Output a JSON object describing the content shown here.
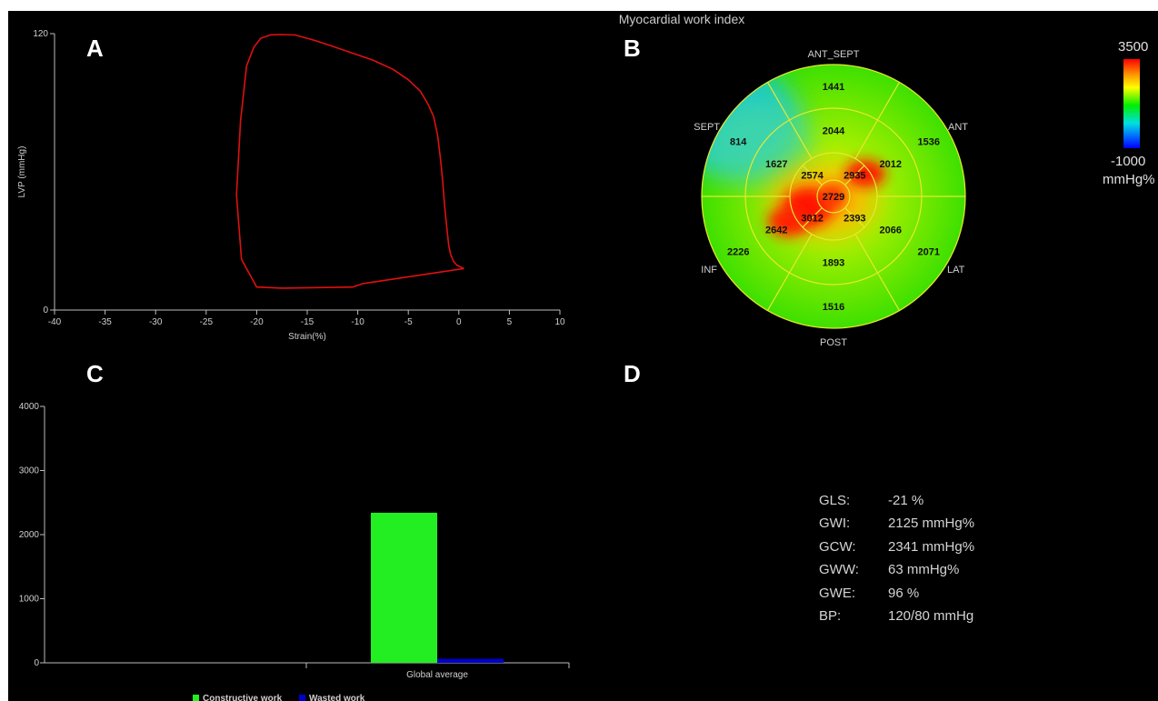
{
  "title": "Myocardial work index",
  "panels": {
    "a": "A",
    "b": "B",
    "c": "C",
    "d": "D"
  },
  "chart_data": [
    {
      "type": "line",
      "xlabel": "Strain(%)",
      "ylabel": "LVP (mmHg)",
      "xlim": [
        -40,
        10
      ],
      "ylim": [
        0,
        120
      ],
      "x_ticks": [
        "-40",
        "-35",
        "-30",
        "-25",
        "-20",
        "-15",
        "-10",
        "-5",
        "0",
        "5",
        "10"
      ],
      "y_ticks": [
        "0",
        "120"
      ],
      "series": [
        {
          "color": "#e01010",
          "x": [
            0.5,
            -9.5,
            -10.5,
            -17.5,
            -20,
            -21.5,
            -22,
            -21.6,
            -21,
            -20.3,
            -19.6,
            -18.6,
            -17.5,
            -16.2,
            -14.2,
            -12.5,
            -10.5,
            -8.5,
            -6.5,
            -5,
            -3.8,
            -3.0,
            -2.5,
            -2.1,
            -1.8,
            -1.6,
            -1.4,
            -1.2,
            -1.0,
            -0.8,
            -0.5,
            -0.2,
            0.5
          ],
          "y": [
            18,
            11.5,
            10,
            9.5,
            10,
            22,
            50,
            82,
            106,
            114,
            118,
            119.5,
            119.6,
            119.4,
            117,
            114.5,
            111.5,
            108.5,
            104.5,
            100,
            95,
            89,
            84,
            76,
            65,
            56,
            45,
            36,
            28,
            24,
            21,
            19.5,
            18
          ]
        }
      ]
    },
    {
      "type": "heatmap",
      "subtype": "bullseye",
      "scale": {
        "max": "3500",
        "min": "-1000",
        "unit": "mmHg%"
      },
      "labels": {
        "ant_sept": "ANT_SEPT",
        "ant": "ANT",
        "lat": "LAT",
        "post": "POST",
        "inf": "INF",
        "sept": "SEPT"
      },
      "segments": {
        "basal": [
          {
            "name": "ANT_SEPT",
            "value": "1441"
          },
          {
            "name": "ANT",
            "value": "1536"
          },
          {
            "name": "LAT",
            "value": "2071"
          },
          {
            "name": "POST",
            "value": "1516"
          },
          {
            "name": "INF",
            "value": "2226"
          },
          {
            "name": "SEPT",
            "value": "814"
          }
        ],
        "mid": [
          {
            "name": "ANT_SEPT",
            "value": "2044"
          },
          {
            "name": "ANT",
            "value": "2012"
          },
          {
            "name": "LAT",
            "value": "2066"
          },
          {
            "name": "POST",
            "value": "1893"
          },
          {
            "name": "INF",
            "value": "2642"
          },
          {
            "name": "SEPT",
            "value": "1627"
          }
        ],
        "apical": [
          {
            "name": "SEPT",
            "value": "2574"
          },
          {
            "name": "ANT",
            "value": "2935"
          },
          {
            "name": "LAT",
            "value": "2393"
          },
          {
            "name": "INF",
            "value": "3012"
          }
        ],
        "apex": {
          "value": "2729"
        }
      }
    },
    {
      "type": "bar",
      "categories": [
        "Global average"
      ],
      "ylim": [
        0,
        4000
      ],
      "y_ticks": [
        "0",
        "1000",
        "2000",
        "3000",
        "4000"
      ],
      "series": [
        {
          "name": "Constructive work",
          "values": [
            2341
          ],
          "color": "#22ee22"
        },
        {
          "name": "Wasted work",
          "values": [
            63
          ],
          "color": "#0000cc"
        }
      ]
    }
  ],
  "stats": [
    {
      "label": "GLS:",
      "value": "-21 %"
    },
    {
      "label": "GWI:",
      "value": "2125 mmHg%"
    },
    {
      "label": "GCW:",
      "value": "2341 mmHg%"
    },
    {
      "label": "GWW:",
      "value": "63 mmHg%"
    },
    {
      "label": "GWE:",
      "value": "96 %"
    },
    {
      "label": "BP:",
      "value": "120/80 mmHg"
    }
  ]
}
